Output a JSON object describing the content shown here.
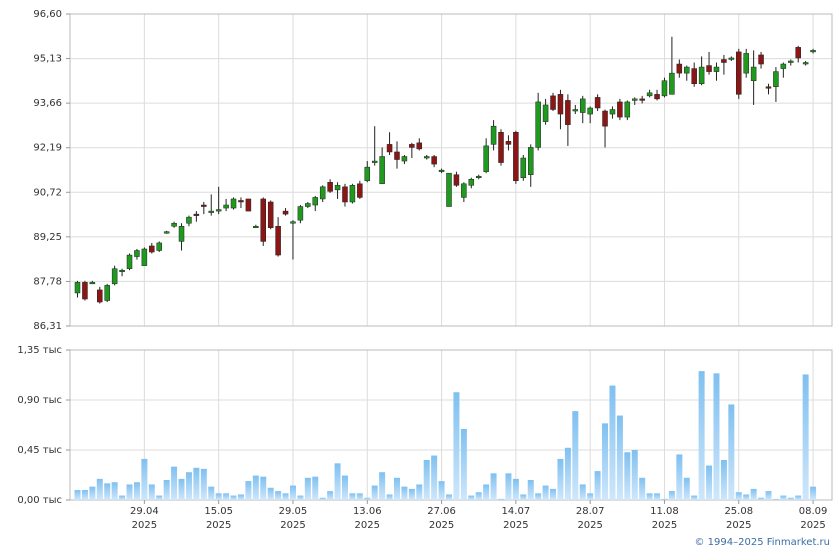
{
  "chart_data": [
    {
      "type": "candlestick",
      "up_color": "#1f9a1f",
      "down_color": "#8b1616",
      "grid": true,
      "ylim": [
        86.31,
        96.6
      ],
      "yticks": [
        {
          "value": 86.31,
          "label": "86,31"
        },
        {
          "value": 87.78,
          "label": "87,78"
        },
        {
          "value": 89.25,
          "label": "89,25"
        },
        {
          "value": 90.72,
          "label": "90,72"
        },
        {
          "value": 92.19,
          "label": "92,19"
        },
        {
          "value": 93.66,
          "label": "93,66"
        },
        {
          "value": 95.13,
          "label": "95,13"
        },
        {
          "value": 96.6,
          "label": "96,60"
        }
      ],
      "open": [
        87.4,
        87.75,
        87.7,
        87.5,
        87.15,
        87.7,
        88.1,
        88.2,
        88.6,
        88.3,
        88.95,
        88.8,
        89.4,
        89.6,
        89.1,
        89.7,
        90.0,
        90.3,
        90.1,
        90.1,
        90.2,
        90.2,
        90.45,
        90.5,
        89.6,
        90.5,
        90.4,
        89.6,
        90.1,
        89.7,
        89.8,
        90.25,
        90.3,
        90.5,
        91.05,
        90.8,
        90.9,
        90.4,
        91.0,
        91.1,
        91.7,
        91.0,
        92.3,
        92.05,
        91.75,
        92.3,
        92.35,
        91.85,
        91.9,
        91.4,
        90.25,
        91.3,
        90.55,
        90.95,
        91.2,
        91.4,
        92.3,
        92.7,
        92.4,
        92.7,
        91.2,
        91.3,
        92.2,
        93.05,
        93.9,
        93.95,
        93.75,
        93.4,
        93.35,
        93.3,
        93.85,
        93.4,
        93.3,
        93.7,
        93.2,
        93.75,
        93.8,
        93.9,
        93.95,
        93.9,
        93.95,
        94.95,
        94.65,
        94.8,
        94.3,
        94.9,
        94.7,
        95.1,
        95.1,
        95.35,
        94.65,
        94.4,
        95.25,
        94.2,
        94.2,
        94.8,
        95.0,
        95.5,
        94.95,
        95.35
      ],
      "high": [
        87.8,
        87.8,
        87.8,
        87.6,
        87.7,
        88.3,
        88.2,
        88.7,
        88.85,
        88.9,
        89.05,
        89.1,
        89.45,
        89.75,
        89.7,
        89.95,
        90.1,
        90.4,
        90.65,
        90.9,
        90.5,
        90.55,
        90.55,
        90.5,
        89.65,
        90.55,
        90.45,
        89.9,
        90.2,
        89.8,
        90.3,
        90.4,
        90.6,
        90.95,
        91.15,
        91.05,
        91.0,
        91.0,
        91.1,
        91.75,
        92.9,
        92.2,
        92.7,
        92.4,
        91.95,
        92.35,
        92.5,
        91.95,
        91.95,
        91.5,
        91.35,
        91.4,
        91.05,
        91.2,
        91.3,
        92.5,
        93.1,
        92.8,
        92.6,
        92.75,
        91.95,
        92.3,
        94.0,
        93.8,
        94.0,
        94.1,
        93.95,
        93.6,
        93.9,
        93.55,
        93.95,
        93.45,
        93.55,
        93.8,
        93.75,
        93.85,
        93.9,
        94.1,
        94.1,
        94.5,
        95.85,
        95.1,
        94.9,
        95.0,
        95.2,
        95.35,
        95.0,
        95.25,
        95.2,
        95.45,
        95.45,
        95.4,
        95.35,
        94.3,
        94.85,
        95.0,
        95.1,
        95.55,
        95.05,
        95.45
      ],
      "low": [
        87.25,
        87.15,
        87.7,
        87.05,
        87.1,
        87.65,
        87.95,
        88.15,
        88.5,
        88.3,
        88.7,
        88.75,
        89.35,
        89.55,
        88.8,
        89.6,
        89.75,
        90.0,
        89.95,
        90.0,
        90.1,
        90.15,
        90.2,
        90.1,
        89.55,
        88.95,
        89.5,
        88.6,
        89.95,
        88.5,
        89.7,
        90.2,
        90.1,
        90.4,
        90.7,
        90.5,
        90.25,
        90.35,
        90.5,
        91.05,
        91.6,
        91.0,
        91.95,
        91.5,
        91.65,
        91.85,
        92.1,
        91.8,
        91.55,
        91.35,
        90.25,
        90.9,
        90.4,
        90.85,
        91.15,
        91.35,
        92.1,
        91.6,
        92.1,
        91.0,
        91.1,
        90.9,
        92.1,
        92.95,
        93.4,
        92.8,
        92.25,
        93.3,
        93.0,
        93.0,
        93.4,
        92.2,
        93.15,
        93.1,
        93.1,
        93.6,
        93.65,
        93.85,
        93.75,
        93.85,
        93.95,
        94.5,
        94.4,
        94.2,
        94.25,
        94.6,
        94.4,
        94.6,
        95.05,
        93.8,
        94.5,
        93.6,
        94.8,
        93.95,
        93.7,
        94.5,
        94.9,
        95.0,
        94.9,
        95.3
      ],
      "close": [
        87.75,
        87.2,
        87.75,
        87.1,
        87.65,
        88.2,
        88.15,
        88.65,
        88.8,
        88.85,
        88.75,
        89.05,
        89.42,
        89.7,
        89.6,
        89.9,
        89.95,
        90.25,
        90.1,
        90.15,
        90.3,
        90.5,
        90.4,
        90.1,
        89.6,
        89.1,
        89.55,
        88.65,
        90.0,
        89.75,
        90.25,
        90.35,
        90.55,
        90.9,
        90.75,
        90.95,
        90.4,
        90.95,
        90.55,
        91.55,
        91.75,
        91.9,
        92.05,
        91.8,
        91.9,
        92.2,
        92.15,
        91.9,
        91.65,
        91.45,
        91.35,
        90.95,
        91.0,
        91.15,
        91.25,
        92.25,
        92.9,
        91.7,
        92.3,
        91.1,
        91.85,
        92.2,
        93.7,
        93.6,
        93.45,
        93.3,
        92.95,
        93.45,
        93.8,
        93.5,
        93.5,
        92.9,
        93.45,
        93.2,
        93.7,
        93.8,
        93.75,
        94.0,
        93.8,
        94.4,
        94.65,
        94.65,
        94.85,
        94.3,
        94.85,
        94.7,
        94.85,
        95.0,
        95.15,
        93.95,
        95.3,
        94.85,
        94.95,
        94.15,
        94.7,
        94.95,
        95.05,
        95.15,
        95.0,
        95.4
      ]
    },
    {
      "type": "bar",
      "color": "#8cc8f2",
      "grid": true,
      "ylim": [
        0,
        1.35
      ],
      "yticks": [
        {
          "value": 0,
          "label": "0,00 тыс"
        },
        {
          "value": 0.45,
          "label": "0,45 тыс"
        },
        {
          "value": 0.9,
          "label": "0,90 тыс"
        },
        {
          "value": 1.35,
          "label": "1,35 тыс"
        }
      ],
      "categories": [
        null,
        null,
        null,
        null,
        null,
        null,
        null,
        null,
        null,
        "29.04\n2025",
        null,
        null,
        null,
        null,
        null,
        null,
        null,
        null,
        null,
        "15.05\n2025",
        null,
        null,
        null,
        null,
        null,
        null,
        null,
        null,
        null,
        "29.05\n2025",
        null,
        null,
        null,
        null,
        null,
        null,
        null,
        null,
        null,
        "13.06\n2025",
        null,
        null,
        null,
        null,
        null,
        null,
        null,
        null,
        null,
        "27.06\n2025",
        null,
        null,
        null,
        null,
        null,
        null,
        null,
        null,
        null,
        "14.07\n2025",
        null,
        null,
        null,
        null,
        null,
        null,
        null,
        null,
        null,
        "28.07\n2025",
        null,
        null,
        null,
        null,
        null,
        null,
        null,
        null,
        null,
        "11.08\n2025",
        null,
        null,
        null,
        null,
        null,
        null,
        null,
        null,
        null,
        "25.08\n2025",
        null,
        null,
        null,
        null,
        null,
        null,
        null,
        null,
        null,
        "08.09\n2025"
      ],
      "values": [
        0.09,
        0.09,
        0.12,
        0.19,
        0.15,
        0.16,
        0.04,
        0.14,
        0.16,
        0.37,
        0.14,
        0.04,
        0.18,
        0.3,
        0.19,
        0.25,
        0.29,
        0.28,
        0.12,
        0.06,
        0.06,
        0.04,
        0.05,
        0.17,
        0.22,
        0.21,
        0.11,
        0.08,
        0.06,
        0.13,
        0.04,
        0.2,
        0.21,
        0.02,
        0.08,
        0.33,
        0.22,
        0.06,
        0.06,
        0.02,
        0.13,
        0.25,
        0.05,
        0.2,
        0.12,
        0.1,
        0.14,
        0.36,
        0.4,
        0.17,
        0.05,
        0.97,
        0.64,
        0.04,
        0.07,
        0.14,
        0.24,
        0.01,
        0.24,
        0.19,
        0.05,
        0.18,
        0.06,
        0.13,
        0.1,
        0.37,
        0.47,
        0.8,
        0.14,
        0.06,
        0.26,
        0.69,
        1.03,
        0.76,
        0.43,
        0.45,
        0.2,
        0.06,
        0.06,
        0.01,
        0.08,
        0.41,
        0.2,
        0.04,
        1.16,
        0.31,
        1.14,
        0.36,
        0.86,
        0.07,
        0.05,
        0.1,
        0.02,
        0.08,
        0.01,
        0.04,
        0.02,
        0.04,
        1.13,
        0.12
      ]
    }
  ],
  "footer": "© 1994–2025 Finmarket.ru"
}
